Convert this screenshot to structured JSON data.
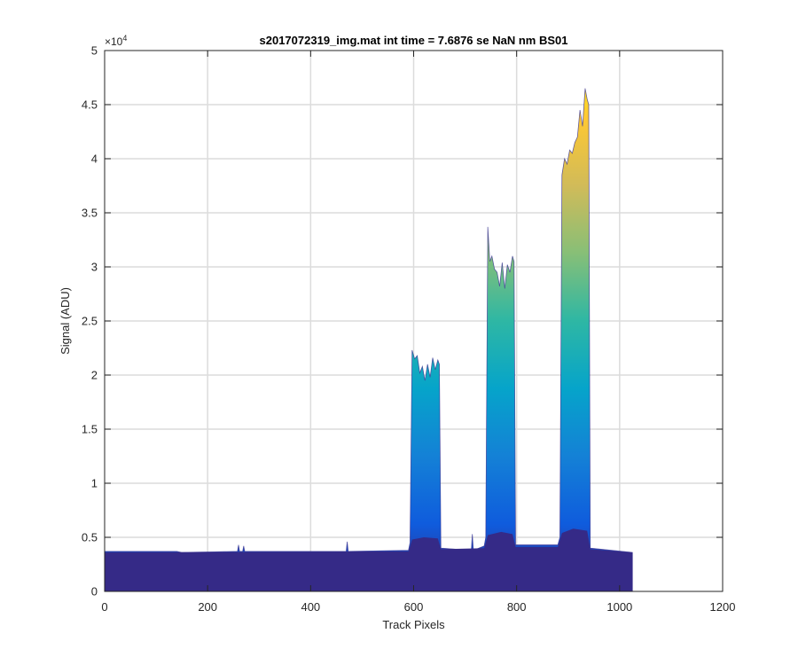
{
  "chart_data": {
    "type": "area",
    "title": "s2017072319_img.mat int time = 7.6876 se  NaN nm BS01",
    "xlabel": "Track Pixels",
    "ylabel": "Signal (ADU)",
    "xlim": [
      0,
      1200
    ],
    "ylim": [
      0,
      50000
    ],
    "x_ticks": [
      0,
      200,
      400,
      600,
      800,
      1000,
      1200
    ],
    "x_tick_labels": [
      "0",
      "200",
      "400",
      "600",
      "800",
      "1000",
      "1200"
    ],
    "y_ticks": [
      0,
      5000,
      10000,
      15000,
      20000,
      25000,
      30000,
      35000,
      40000,
      45000,
      50000
    ],
    "y_tick_labels": [
      "0",
      "0.5",
      "1",
      "1.5",
      "2",
      "2.5",
      "3",
      "3.5",
      "4",
      "4.5",
      "5"
    ],
    "y_exponent_label": "×10",
    "y_exponent_power": "4",
    "grid": true,
    "colormap": "parula",
    "colormap_stops": [
      "#352a87",
      "#0f5cdd",
      "#1481d6",
      "#06a4ca",
      "#2eb7a4",
      "#87bf77",
      "#d1bb59",
      "#fec832",
      "#f9fb0e"
    ],
    "series": [
      {
        "x": [
          0,
          140,
          150,
          258,
          260,
          262,
          268,
          270,
          272,
          469,
          471,
          473,
          590,
          593,
          597,
          602,
          607,
          612,
          617,
          622,
          627,
          632,
          637,
          642,
          647,
          650,
          653,
          712,
          714,
          716,
          737,
          740,
          744,
          748,
          752,
          757,
          762,
          767,
          772,
          777,
          782,
          787,
          792,
          795,
          798,
          880,
          884,
          888,
          893,
          898,
          903,
          908,
          913,
          918,
          923,
          928,
          933,
          937,
          940,
          943,
          1025
        ],
        "y": [
          3700,
          3700,
          3600,
          3700,
          4300,
          3700,
          3700,
          4200,
          3700,
          3700,
          4600,
          3700,
          3800,
          4500,
          22300,
          21500,
          21800,
          20200,
          20800,
          19500,
          21000,
          19800,
          21600,
          20500,
          21400,
          21000,
          4000,
          3800,
          5300,
          3800,
          4200,
          5000,
          33700,
          30500,
          31000,
          29800,
          29500,
          28200,
          30400,
          28000,
          30200,
          29500,
          31000,
          30500,
          4300,
          4300,
          5000,
          38500,
          40000,
          39500,
          40800,
          40500,
          41500,
          42000,
          44500,
          43000,
          46500,
          45500,
          45000,
          4000,
          3600
        ]
      },
      {
        "x": [
          0,
          590,
          597,
          620,
          647,
          653,
          737,
          744,
          770,
          792,
          798,
          880,
          888,
          910,
          937,
          943,
          1025
        ],
        "y": [
          3600,
          3700,
          4800,
          5000,
          4900,
          3900,
          4000,
          5200,
          5500,
          5300,
          4100,
          4100,
          5400,
          5800,
          5600,
          3900,
          3600
        ]
      }
    ]
  }
}
